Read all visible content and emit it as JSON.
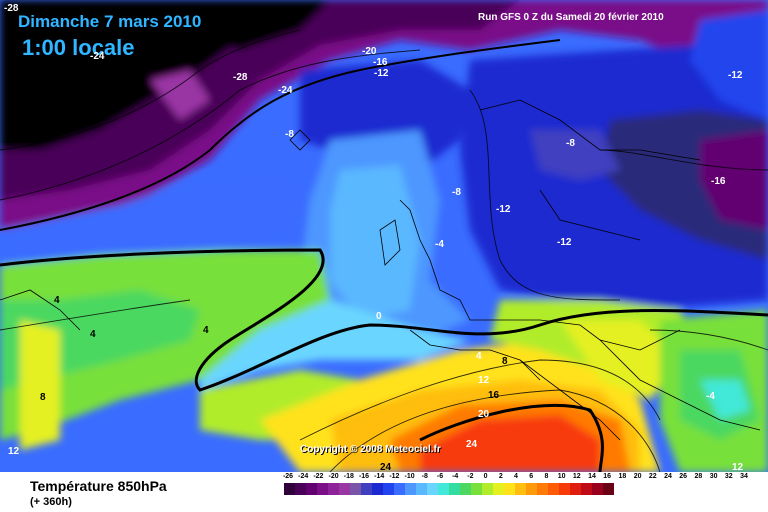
{
  "header": {
    "date": "Dimanche 7 mars 2010",
    "time": "1:00 locale",
    "run": "Run GFS 0 Z du Samedi 20 février 2010"
  },
  "copyright": "Copyright © 2008 Meteociel.fr",
  "footer": {
    "title": "Température 850hPa",
    "subtitle": "(+ 360h)"
  },
  "legend": {
    "ticks": [
      "-26",
      "-24",
      "-22",
      "-20",
      "-18",
      "-16",
      "-14",
      "-12",
      "-10",
      "-8",
      "-6",
      "-4",
      "-2",
      "0",
      "2",
      "4",
      "6",
      "8",
      "10",
      "12",
      "14",
      "16",
      "18",
      "20",
      "22",
      "24",
      "26",
      "28",
      "30",
      "32",
      "34"
    ],
    "colors": [
      "#30003a",
      "#4a0058",
      "#620072",
      "#7a0f88",
      "#8e2298",
      "#9a36a4",
      "#7a54a8",
      "#3f3fc0",
      "#1a2ad0",
      "#2244ee",
      "#3a6cff",
      "#4d97ff",
      "#5ab8ff",
      "#6ad6ff",
      "#42e8d8",
      "#33dca0",
      "#4cd860",
      "#78e03a",
      "#b0ec2a",
      "#e4f020",
      "#ffe21a",
      "#ffbe10",
      "#ff9a0a",
      "#ff7a06",
      "#ff5a04",
      "#f83a08",
      "#e01e10",
      "#c00a18",
      "#98001e",
      "#6a0016"
    ]
  },
  "map_labels": [
    {
      "text": "-28",
      "tone": "w"
    },
    {
      "text": "-24",
      "tone": "w"
    },
    {
      "text": "-28",
      "tone": "w"
    },
    {
      "text": "-24",
      "tone": "w"
    },
    {
      "text": "-20",
      "tone": "w"
    },
    {
      "text": "-16",
      "tone": "w"
    },
    {
      "text": "-12",
      "tone": "w"
    },
    {
      "text": "-8",
      "tone": "w"
    },
    {
      "text": "-8",
      "tone": "w"
    },
    {
      "text": "-8",
      "tone": "w"
    },
    {
      "text": "-12",
      "tone": "w"
    },
    {
      "text": "-12",
      "tone": "w"
    },
    {
      "text": "-12",
      "tone": "w"
    },
    {
      "text": "-16",
      "tone": "w"
    },
    {
      "text": "-4",
      "tone": "w"
    },
    {
      "text": "0",
      "tone": "w"
    },
    {
      "text": "4",
      "tone": "k"
    },
    {
      "text": "4",
      "tone": "k"
    },
    {
      "text": "4",
      "tone": "k"
    },
    {
      "text": "4",
      "tone": "w"
    },
    {
      "text": "8",
      "tone": "k"
    },
    {
      "text": "8",
      "tone": "k"
    },
    {
      "text": "12",
      "tone": "w"
    },
    {
      "text": "16",
      "tone": "k"
    },
    {
      "text": "20",
      "tone": "w"
    },
    {
      "text": "24",
      "tone": "w"
    },
    {
      "text": "24",
      "tone": "k"
    },
    {
      "text": "12",
      "tone": "w"
    },
    {
      "text": "-4",
      "tone": "w"
    },
    {
      "text": "12",
      "tone": "w"
    }
  ]
}
